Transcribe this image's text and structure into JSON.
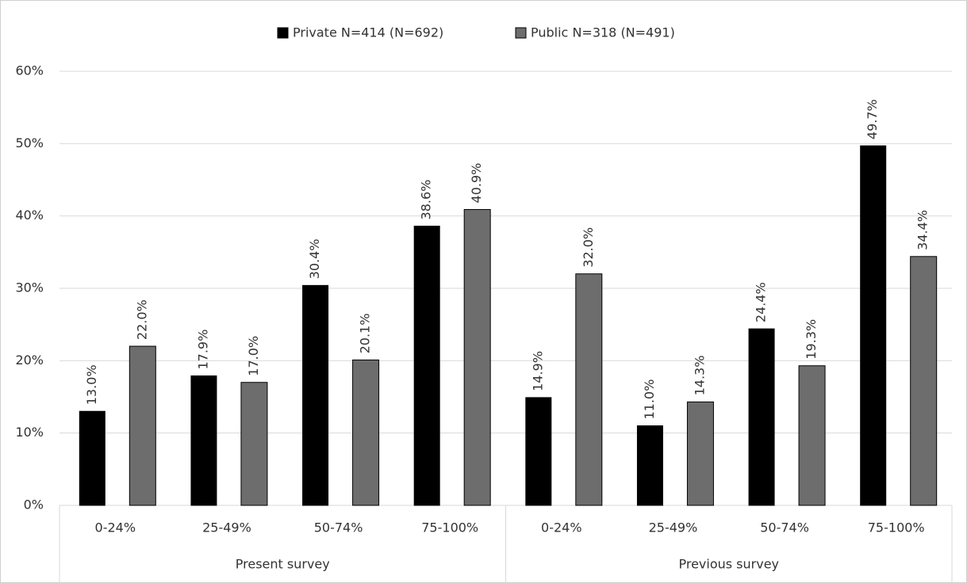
{
  "chart_data": {
    "type": "bar",
    "groups": [
      {
        "name": "Present survey",
        "categories": [
          "0-24%",
          "25-49%",
          "50-74%",
          "75-100%"
        ]
      },
      {
        "name": "Previous survey",
        "categories": [
          "0-24%",
          "25-49%",
          "50-74%",
          "75-100%"
        ]
      }
    ],
    "series": [
      {
        "name": "Private N=414 (N=692)",
        "color": "#000000",
        "values": [
          13.0,
          17.9,
          30.4,
          38.6,
          14.9,
          11.0,
          24.4,
          49.7
        ],
        "value_labels": [
          "13.0%",
          "17.9%",
          "30.4%",
          "38.6%",
          "14.9%",
          "11.0%",
          "24.4%",
          "49.7%"
        ]
      },
      {
        "name": "Public N=318 (N=491)",
        "color": "#6d6d6d",
        "values": [
          22.0,
          17.0,
          20.1,
          40.9,
          32.0,
          14.3,
          19.3,
          34.4
        ],
        "value_labels": [
          "22.0%",
          "17.0%",
          "20.1%",
          "40.9%",
          "32.0%",
          "14.3%",
          "19.3%",
          "34.4%"
        ]
      }
    ],
    "ylim": [
      0,
      60
    ],
    "yticks": [
      {
        "value": 0,
        "label": "0%"
      },
      {
        "value": 10,
        "label": "10%"
      },
      {
        "value": 20,
        "label": "20%"
      },
      {
        "value": 30,
        "label": "30%"
      },
      {
        "value": 40,
        "label": "40%"
      },
      {
        "value": 50,
        "label": "50%"
      },
      {
        "value": 60,
        "label": "60%"
      }
    ],
    "grid": true,
    "legend": "top"
  }
}
